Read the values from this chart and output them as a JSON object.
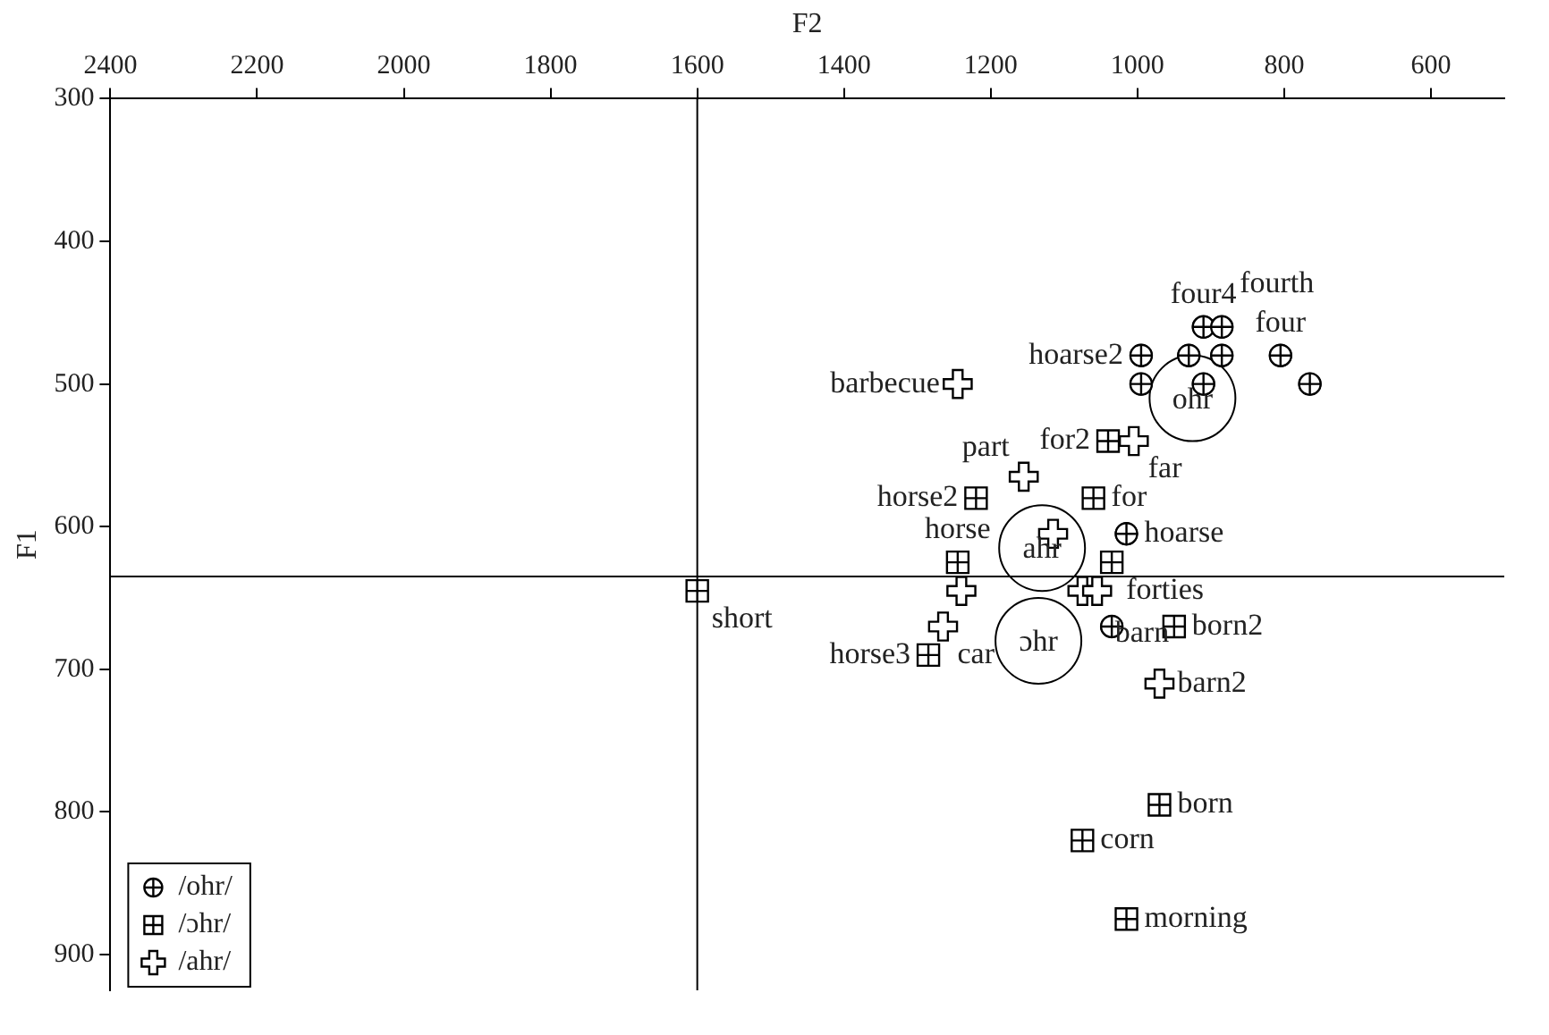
{
  "chart_data": {
    "type": "scatter",
    "xlabel": "F2",
    "ylabel": "F1",
    "xlim": [
      2400,
      500
    ],
    "xticks": [
      2400,
      2200,
      2000,
      1800,
      1600,
      1400,
      1200,
      1000,
      800,
      600
    ],
    "ylim": [
      925,
      300
    ],
    "yticks": [
      300,
      400,
      500,
      600,
      700,
      800,
      900
    ],
    "grid": false,
    "legend": "bottom left",
    "ref_lines": [
      {
        "axis": "x",
        "value": 1600,
        "color": "#000000"
      },
      {
        "axis": "y",
        "value": 635,
        "color": "#000000"
      }
    ],
    "series": [
      {
        "type": "bubble",
        "color": "#000000",
        "x": [
          925,
          1130,
          1135
        ],
        "values": [
          510,
          615,
          680
        ],
        "sizes": [
          1,
          1,
          1
        ],
        "value_labels": [
          "ohr",
          "ahr",
          "ɔhr"
        ]
      },
      {
        "name": "/ohr/",
        "color": "#000000",
        "marker": "circle",
        "x": [
          910,
          885,
          995,
          930,
          885,
          805,
          995,
          910,
          765,
          1015,
          1035
        ],
        "values": [
          460,
          460,
          480,
          480,
          480,
          480,
          500,
          500,
          500,
          605,
          670
        ],
        "value_labels": [
          "four4",
          "fourth",
          "hoarse2",
          null,
          null,
          "four",
          null,
          null,
          null,
          "hoarse",
          null
        ]
      },
      {
        "name": "/ɔhr/",
        "color": "#000000",
        "marker": "square",
        "x": [
          1040,
          1220,
          1060,
          1245,
          1035,
          1600,
          950,
          1285,
          970,
          1075,
          1015
        ],
        "values": [
          540,
          580,
          580,
          625,
          625,
          645,
          670,
          690,
          795,
          820,
          875
        ],
        "value_labels": [
          "for2",
          "horse2",
          "for",
          "horse",
          "forties",
          "short",
          "born2",
          "horse3",
          "born",
          "corn",
          "morning"
        ]
      },
      {
        "name": "/ahr/",
        "color": "#000000",
        "marker": "cross",
        "x": [
          1245,
          1005,
          1155,
          1115,
          1240,
          1075,
          1055,
          1265,
          970
        ],
        "values": [
          500,
          540,
          565,
          605,
          645,
          645,
          645,
          670,
          710
        ],
        "value_labels": [
          "barbecue",
          "far",
          "part",
          null,
          null,
          null,
          "barn",
          "car",
          "barn2"
        ]
      }
    ]
  }
}
